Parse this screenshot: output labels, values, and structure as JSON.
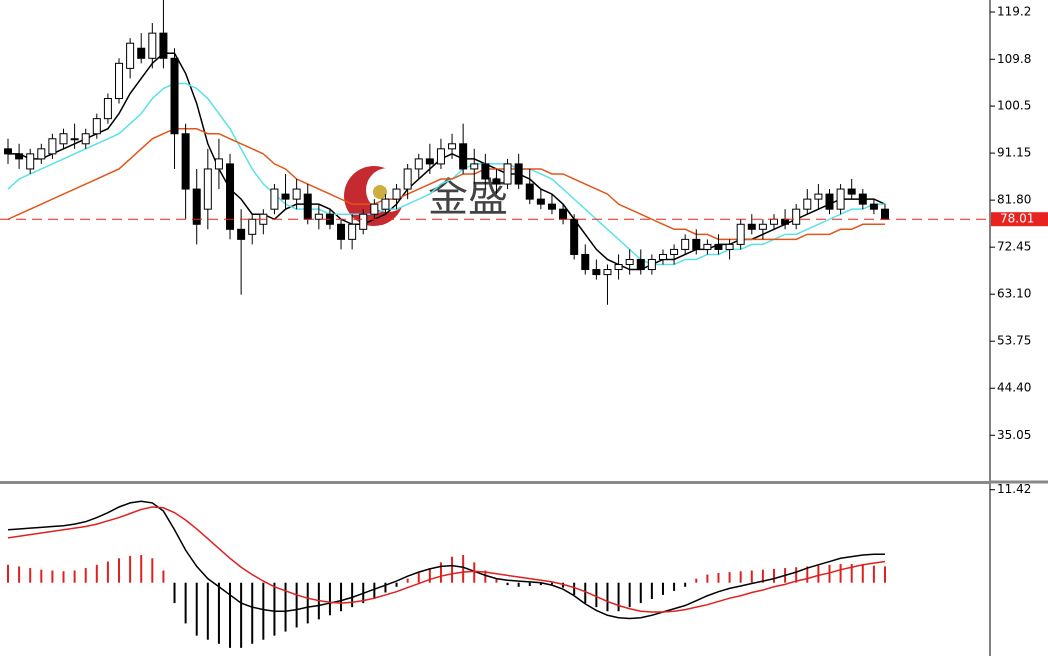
{
  "chart_data": [
    {
      "type": "candlestick",
      "watermark": "金盛",
      "ylim": [
        25.76,
        121.59
      ],
      "yticks": [
        {
          "value": 119.2,
          "label": "119.2"
        },
        {
          "value": 109.8,
          "label": "109.8"
        },
        {
          "value": 100.5,
          "label": "100.5"
        },
        91.15,
        {
          "value": 81.8,
          "label": "81.80"
        },
        72.45,
        {
          "value": 63.1,
          "label": "63.10"
        },
        53.75,
        {
          "value": 44.4,
          "label": "44.40"
        },
        35.05
      ],
      "current_price": 78.01,
      "current_price_color": "#e8231f",
      "open": [
        92,
        91,
        88,
        90,
        91,
        93,
        94,
        93,
        95,
        98,
        102,
        108,
        112,
        110,
        115,
        110,
        95,
        84,
        80,
        88,
        89,
        76,
        75,
        77,
        80,
        83,
        82,
        83,
        78,
        79,
        77,
        74,
        76,
        79,
        80,
        82,
        84,
        88,
        90,
        89,
        92,
        93,
        88,
        89,
        86,
        85,
        89,
        85,
        82,
        81,
        80,
        78,
        71,
        68,
        67,
        68,
        69,
        70,
        68,
        70,
        71,
        72,
        74,
        72,
        73,
        72,
        73,
        77,
        76,
        77,
        78,
        77,
        80,
        82,
        83,
        80,
        84,
        83,
        81,
        80
      ],
      "high": [
        94,
        93,
        92,
        93,
        95,
        96,
        97,
        96,
        99,
        103,
        110,
        114,
        115,
        117,
        122,
        112,
        97,
        88,
        92,
        94,
        91,
        80,
        79,
        80,
        85,
        87,
        86,
        85,
        81,
        80,
        78,
        79,
        80,
        82,
        83,
        85,
        89,
        91,
        93,
        94,
        95,
        97,
        92,
        91,
        88,
        90,
        91,
        88,
        84,
        83,
        81,
        79,
        73,
        70,
        69,
        71,
        72,
        72,
        71,
        72,
        73,
        75,
        76,
        74,
        75,
        74,
        78,
        79,
        78,
        79,
        80,
        81,
        84,
        85,
        84,
        85,
        86,
        84,
        82,
        81
      ],
      "low": [
        89,
        88,
        87,
        89,
        90,
        92,
        92,
        92,
        94,
        97,
        101,
        106,
        109,
        108,
        108,
        88,
        78,
        73,
        76,
        84,
        74,
        63,
        73,
        75,
        79,
        80,
        80,
        77,
        76,
        76,
        72,
        72,
        75,
        78,
        79,
        80,
        82,
        86,
        87,
        88,
        90,
        87,
        85,
        84,
        83,
        84,
        84,
        81,
        80,
        79,
        77,
        70,
        67,
        66,
        61,
        66,
        67,
        67,
        67,
        69,
        69,
        71,
        71,
        71,
        71,
        70,
        72,
        75,
        74,
        76,
        76,
        76,
        79,
        80,
        79,
        79,
        82,
        80,
        79,
        78
      ],
      "close": [
        91,
        90,
        91,
        92,
        94,
        95,
        94,
        95,
        98,
        102,
        109,
        113,
        110,
        115,
        110,
        95,
        84,
        77,
        88,
        90,
        76,
        74,
        78,
        79,
        84,
        82,
        84,
        78,
        79,
        77,
        74,
        77,
        79,
        81,
        82,
        84,
        88,
        90,
        89,
        92,
        93,
        88,
        89,
        86,
        85,
        89,
        85,
        82,
        81,
        80,
        78,
        71,
        68,
        67,
        68,
        69,
        70,
        68,
        70,
        71,
        72,
        74,
        72,
        73,
        72,
        73,
        77,
        76,
        77,
        78,
        77,
        80,
        82,
        83,
        80,
        84,
        83,
        81,
        80,
        78
      ],
      "series": [
        {
          "color": "#000000",
          "values": [
            91,
            91,
            90,
            90,
            91,
            92,
            93,
            94,
            95,
            96,
            99,
            103,
            106,
            109,
            111,
            111,
            107,
            101,
            93,
            88,
            84,
            82,
            79,
            79,
            78,
            80,
            81,
            81,
            81,
            80,
            78,
            77,
            77,
            78,
            79,
            81,
            84,
            86,
            88,
            90,
            91,
            90,
            90,
            89,
            88,
            87,
            87,
            86,
            84,
            83,
            81,
            78,
            75,
            72,
            70,
            69,
            68,
            68,
            69,
            70,
            70,
            71,
            72,
            72,
            73,
            73,
            74,
            74,
            75,
            76,
            77,
            78,
            79,
            80,
            81,
            82,
            82,
            82,
            82,
            81
          ]
        },
        {
          "color": "#5ce1e6",
          "values": [
            84,
            86,
            87,
            88,
            89,
            90,
            91,
            92,
            93,
            94,
            95,
            97,
            99,
            102,
            104,
            105,
            105,
            104,
            102,
            99,
            96,
            92,
            88,
            85,
            83,
            81,
            80,
            80,
            80,
            79,
            79,
            79,
            79,
            79,
            80,
            80,
            81,
            82,
            83,
            85,
            86,
            88,
            89,
            89,
            89,
            89,
            88,
            88,
            87,
            86,
            84,
            82,
            80,
            78,
            76,
            74,
            72,
            70,
            69,
            69,
            69,
            70,
            70,
            71,
            71,
            72,
            72,
            73,
            73,
            74,
            75,
            75,
            76,
            77,
            78,
            79,
            80,
            80,
            81,
            81
          ]
        },
        {
          "color": "#e0561b",
          "values": [
            78,
            79,
            80,
            81,
            82,
            83,
            84,
            85,
            86,
            87,
            88,
            90,
            92,
            94,
            95,
            96,
            96,
            96,
            95,
            95,
            94,
            93,
            92,
            91,
            89,
            88,
            86,
            85,
            84,
            83,
            82,
            81,
            81,
            81,
            82,
            82,
            83,
            84,
            85,
            86,
            86,
            87,
            87,
            88,
            88,
            88,
            88,
            88,
            88,
            87,
            87,
            86,
            85,
            84,
            83,
            81,
            80,
            79,
            78,
            77,
            76,
            76,
            75,
            75,
            74,
            74,
            74,
            74,
            74,
            74,
            74,
            74,
            75,
            75,
            75,
            76,
            76,
            77,
            77,
            77
          ]
        }
      ]
    },
    {
      "type": "macd",
      "ylim": [
        -9.0,
        12.0
      ],
      "yticks": [
        11.42
      ],
      "histogram": {
        "up_color": "#e02020",
        "down_color": "#000000",
        "values": [
          2.2,
          2.0,
          1.8,
          1.6,
          1.5,
          1.4,
          1.5,
          1.8,
          2.2,
          2.6,
          3.0,
          3.3,
          3.4,
          3.0,
          1.5,
          -2.5,
          -5,
          -6.5,
          -7,
          -7.5,
          -8,
          -8,
          -7.5,
          -7,
          -6.5,
          -6,
          -5.5,
          -5,
          -4.5,
          -4,
          -3.5,
          -3,
          -2.5,
          -2,
          -1.2,
          -0.5,
          0.5,
          1.2,
          1.8,
          2.5,
          3.2,
          3.4,
          2.5,
          1.5,
          0.5,
          -0.3,
          -0.5,
          -0.4,
          -0.3,
          -0.2,
          -0.6,
          -1.5,
          -2.5,
          -3,
          -3.5,
          -3.5,
          -3,
          -2.5,
          -2,
          -1.5,
          -1,
          -0.5,
          0.5,
          1,
          1.2,
          1.3,
          1.4,
          1.5,
          1.6,
          1.7,
          1.8,
          1.9,
          2.0,
          2.1,
          2.2,
          2.3,
          2.3,
          2.2,
          2.1,
          2.0
        ]
      },
      "macd": {
        "color": "#000000",
        "values": [
          6.5,
          6.6,
          6.7,
          6.8,
          6.9,
          7.0,
          7.2,
          7.5,
          8.0,
          8.6,
          9.3,
          9.8,
          10.0,
          9.8,
          8.8,
          6.5,
          4.0,
          2.0,
          0.5,
          -0.5,
          -1.5,
          -2.5,
          -3,
          -3.3,
          -3.5,
          -3.5,
          -3.3,
          -3,
          -2.8,
          -2.5,
          -2.2,
          -1.8,
          -1.3,
          -0.8,
          -0.3,
          0.2,
          0.8,
          1.3,
          1.7,
          2.0,
          2.1,
          1.9,
          1.4,
          0.9,
          0.5,
          0.3,
          0.2,
          0.1,
          0,
          -0.3,
          -0.8,
          -1.6,
          -2.6,
          -3.4,
          -4,
          -4.3,
          -4.4,
          -4.3,
          -4,
          -3.6,
          -3.2,
          -2.8,
          -2.2,
          -1.6,
          -1.1,
          -0.7,
          -0.4,
          -0.1,
          0.2,
          0.5,
          0.9,
          1.3,
          1.8,
          2.2,
          2.6,
          3.0,
          3.2,
          3.4,
          3.5,
          3.5
        ]
      },
      "signal": {
        "color": "#e02020",
        "values": [
          5.5,
          5.7,
          5.9,
          6.1,
          6.3,
          6.5,
          6.7,
          6.9,
          7.2,
          7.6,
          8.0,
          8.5,
          9.0,
          9.3,
          9.2,
          8.6,
          7.7,
          6.6,
          5.4,
          4.2,
          3.0,
          1.9,
          1.0,
          0.2,
          -0.5,
          -1.0,
          -1.5,
          -1.9,
          -2.2,
          -2.4,
          -2.5,
          -2.4,
          -2.2,
          -1.9,
          -1.5,
          -1.1,
          -0.6,
          -0.1,
          0.4,
          0.8,
          1.1,
          1.3,
          1.4,
          1.3,
          1.1,
          0.9,
          0.7,
          0.5,
          0.3,
          0.1,
          -0.2,
          -0.6,
          -1.1,
          -1.7,
          -2.3,
          -2.8,
          -3.2,
          -3.5,
          -3.6,
          -3.6,
          -3.5,
          -3.3,
          -3.0,
          -2.7,
          -2.3,
          -1.9,
          -1.6,
          -1.2,
          -0.9,
          -0.5,
          -0.2,
          0.2,
          0.5,
          0.9,
          1.2,
          1.6,
          1.9,
          2.2,
          2.4,
          2.6
        ]
      }
    }
  ]
}
